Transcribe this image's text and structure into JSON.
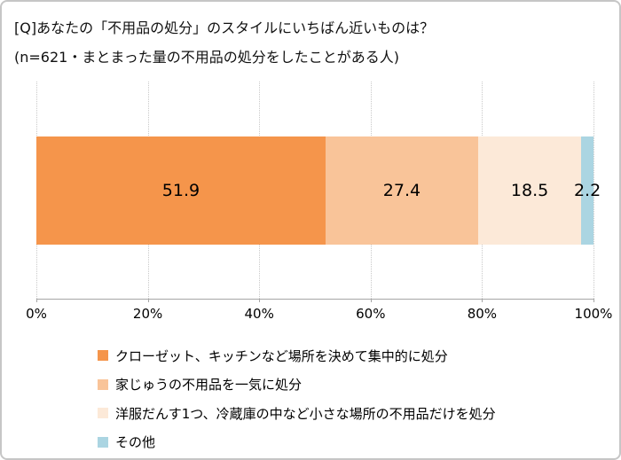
{
  "header": {
    "title_line1": "[Q]あなたの「不用品の処分」のスタイルにいちばん近いものは？",
    "title_line2": "(n=621・まとまった量の不用品の処分をしたことがある人)"
  },
  "chart_data": {
    "type": "bar",
    "subtype": "horizontal-stacked-single-bar",
    "title": "[Q]あなたの「不用品の処分」のスタイルにいちばん近いものは？",
    "subtitle": "(n=621・まとまった量の不用品の処分をしたことがある人)",
    "sample_note_n": "n=621",
    "series": [
      {
        "name": "クローゼット、キッチンなど場所を決めて集中的に処分",
        "value": 51.9,
        "label": "51.9",
        "color": "#f5954b"
      },
      {
        "name": "家じゅうの不用品を一気に処分",
        "value": 27.4,
        "label": "27.4",
        "color": "#f9c499"
      },
      {
        "name": "洋服だんす1つ、冷蔵庫の中など小さな場所の不用品だけを処分",
        "value": 18.5,
        "label": "18.5",
        "color": "#fce9d8"
      },
      {
        "name": "その他",
        "value": 2.2,
        "label": "2.2",
        "color": "#abd5e2"
      }
    ],
    "xlim": [
      0,
      100
    ],
    "x_ticks": [
      "0%",
      "20%",
      "40%",
      "60%",
      "80%",
      "100%"
    ],
    "grid": "vertical-dotted",
    "legend_position": "bottom-left",
    "value_label_position": "inside-center"
  },
  "style_colors": {
    "frame_border": "#c6c6c6",
    "grid_line": "#c9c9c9",
    "axis_line": "#a6a6a6",
    "text": "#000000"
  }
}
